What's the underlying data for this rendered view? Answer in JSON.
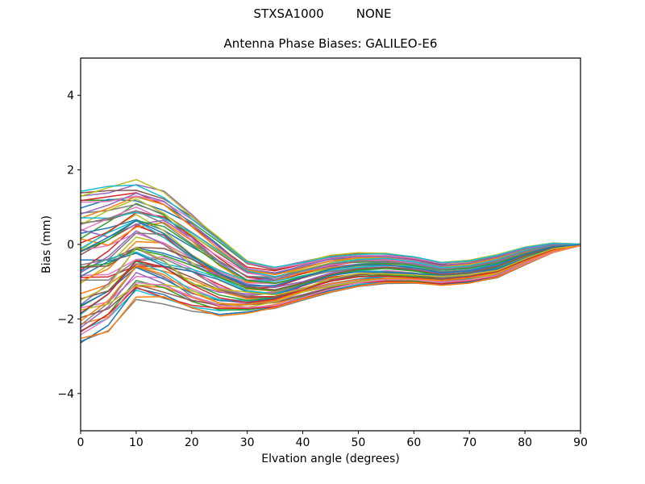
{
  "figure": {
    "background": "#ffffff",
    "suptitle_left": "STXSA1000",
    "suptitle_right": "NONE"
  },
  "chart_data": {
    "type": "line",
    "title": "Antenna Phase Biases: GALILEO-E6",
    "xlabel": "Elvation angle (degrees)",
    "ylabel": "Bias (mm)",
    "xlim": [
      0,
      90
    ],
    "ylim": [
      -5,
      5
    ],
    "xtick_values": [
      0,
      10,
      20,
      30,
      40,
      50,
      60,
      70,
      80,
      90
    ],
    "xtick_labels": [
      "0",
      "10",
      "20",
      "30",
      "40",
      "50",
      "60",
      "70",
      "80",
      "90"
    ],
    "ytick_values": [
      -4,
      -2,
      0,
      2,
      4
    ],
    "ytick_labels": [
      "−4",
      "−2",
      "0",
      "2",
      "4"
    ],
    "grid": false,
    "legend": "none",
    "axis_color": "#000000",
    "line_width": 1.5,
    "n_lines": 62,
    "seed": 20,
    "palette": [
      "#1f77b4",
      "#ff7f0e",
      "#2ca02c",
      "#d62728",
      "#9467bd",
      "#8c564b",
      "#e377c2",
      "#7f7f7f",
      "#bcbd22",
      "#17becf"
    ],
    "x_control": [
      0,
      5,
      10,
      15,
      20,
      25,
      30,
      35,
      40,
      45,
      50,
      55,
      60,
      65,
      70,
      75,
      80,
      85,
      90
    ],
    "envelope_top": [
      1.45,
      1.58,
      1.7,
      1.45,
      0.85,
      0.2,
      -0.45,
      -0.6,
      -0.45,
      -0.28,
      -0.22,
      -0.22,
      -0.32,
      -0.48,
      -0.42,
      -0.26,
      -0.06,
      0.04,
      0.01
    ],
    "envelope_bottom": [
      -2.68,
      -2.3,
      -1.4,
      -1.55,
      -1.8,
      -1.92,
      -1.85,
      -1.74,
      -1.5,
      -1.28,
      -1.12,
      -1.05,
      -1.05,
      -1.1,
      -1.04,
      -0.9,
      -0.55,
      -0.22,
      -0.03
    ],
    "wiggle_envelope": [
      0.55,
      0.52,
      0.48,
      0.4,
      0.3,
      0.2,
      0.15,
      0.12,
      0.1,
      0.08,
      0.07,
      0.07,
      0.06,
      0.06,
      0.05,
      0.04,
      0.03,
      0.015,
      0.004
    ],
    "wiggle": {
      "amp_min": 0.35,
      "amp_max": 1.0,
      "period_min": 18,
      "period_max": 44
    },
    "notes": "Approximately 62 unlabeled antenna phase-bias curves, one per antenna/day, drawn with the matplotlib tab10 color cycle. All curves start spread between +1.45 and -2.68 mm at 0 deg elevation, peak near +1.7 mm around 10 deg, dip to about -1.9 mm near 25 deg, form a tight band around -0.5 to -1.1 mm between 40 and 75 deg, and converge to 0 mm at 90 deg. Each curve is reconstructed as bottom+p*(top-bottom) plus a small seeded sinusoidal wiggle damped by wiggle_envelope."
  }
}
